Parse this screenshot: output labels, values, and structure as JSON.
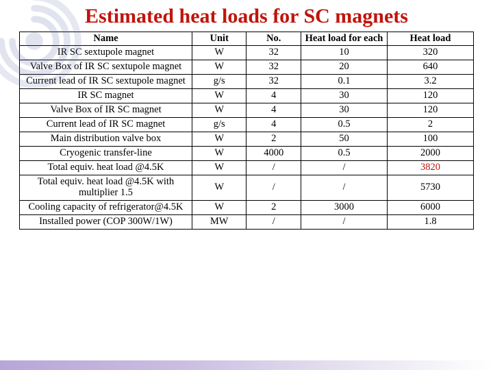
{
  "title": "Estimated heat loads for SC magnets",
  "title_color": "#c0140a",
  "title_fontsize": 30,
  "table": {
    "border_color": "#000000",
    "background_color": "#ffffff",
    "header_fontsize": 15,
    "cell_fontsize": 14.5,
    "columns": [
      {
        "key": "name",
        "label": "Name",
        "width_pct": 38,
        "align": "center"
      },
      {
        "key": "unit",
        "label": "Unit",
        "width_pct": 12,
        "align": "center"
      },
      {
        "key": "no",
        "label": "No.",
        "width_pct": 12,
        "align": "center"
      },
      {
        "key": "each",
        "label": "Heat load for each",
        "width_pct": 19,
        "align": "center"
      },
      {
        "key": "total",
        "label": "Heat load",
        "width_pct": 19,
        "align": "center"
      }
    ],
    "rows": [
      {
        "name": "IR SC sextupole magnet",
        "unit": "W",
        "no": "32",
        "each": "10",
        "total": "320"
      },
      {
        "name": "Valve Box of IR SC sextupole magnet",
        "unit": "W",
        "no": "32",
        "each": "20",
        "total": "640"
      },
      {
        "name": "Current lead of IR SC sextupole magnet",
        "unit": "g/s",
        "no": "32",
        "each": "0.1",
        "total": "3.2"
      },
      {
        "name": "IR SC magnet",
        "unit": "W",
        "no": "4",
        "each": "30",
        "total": "120"
      },
      {
        "name": "Valve Box of IR SC magnet",
        "unit": "W",
        "no": "4",
        "each": "30",
        "total": "120"
      },
      {
        "name": "Current lead of IR SC magnet",
        "unit": "g/s",
        "no": "4",
        "each": "0.5",
        "total": "2"
      },
      {
        "name": "Main distribution valve box",
        "unit": "W",
        "no": "2",
        "each": "50",
        "total": "100"
      },
      {
        "name": "Cryogenic transfer-line",
        "unit": "W",
        "no": "4000",
        "each": "0.5",
        "total": "2000"
      },
      {
        "name": "Total equiv. heat load @4.5K",
        "unit": "W",
        "no": "/",
        "each": "/",
        "total": "3820",
        "total_color": "#c0140a"
      },
      {
        "name": "Total equiv. heat load @4.5K with multiplier 1.5",
        "unit": "W",
        "no": "/",
        "each": "/",
        "total": "5730"
      },
      {
        "name": "Cooling capacity of refrigerator@4.5K",
        "unit": "W",
        "no": "2",
        "each": "3000",
        "total": "6000"
      },
      {
        "name": "Installed power (COP 300W/1W)",
        "unit": "MW",
        "no": "/",
        "each": "/",
        "total": "1.8"
      }
    ]
  },
  "footer_gradient": [
    "#b7a6d8",
    "#c9bce0",
    "#e6e1f0",
    "#ffffff"
  ],
  "swirl_color": "#5a6aa8"
}
